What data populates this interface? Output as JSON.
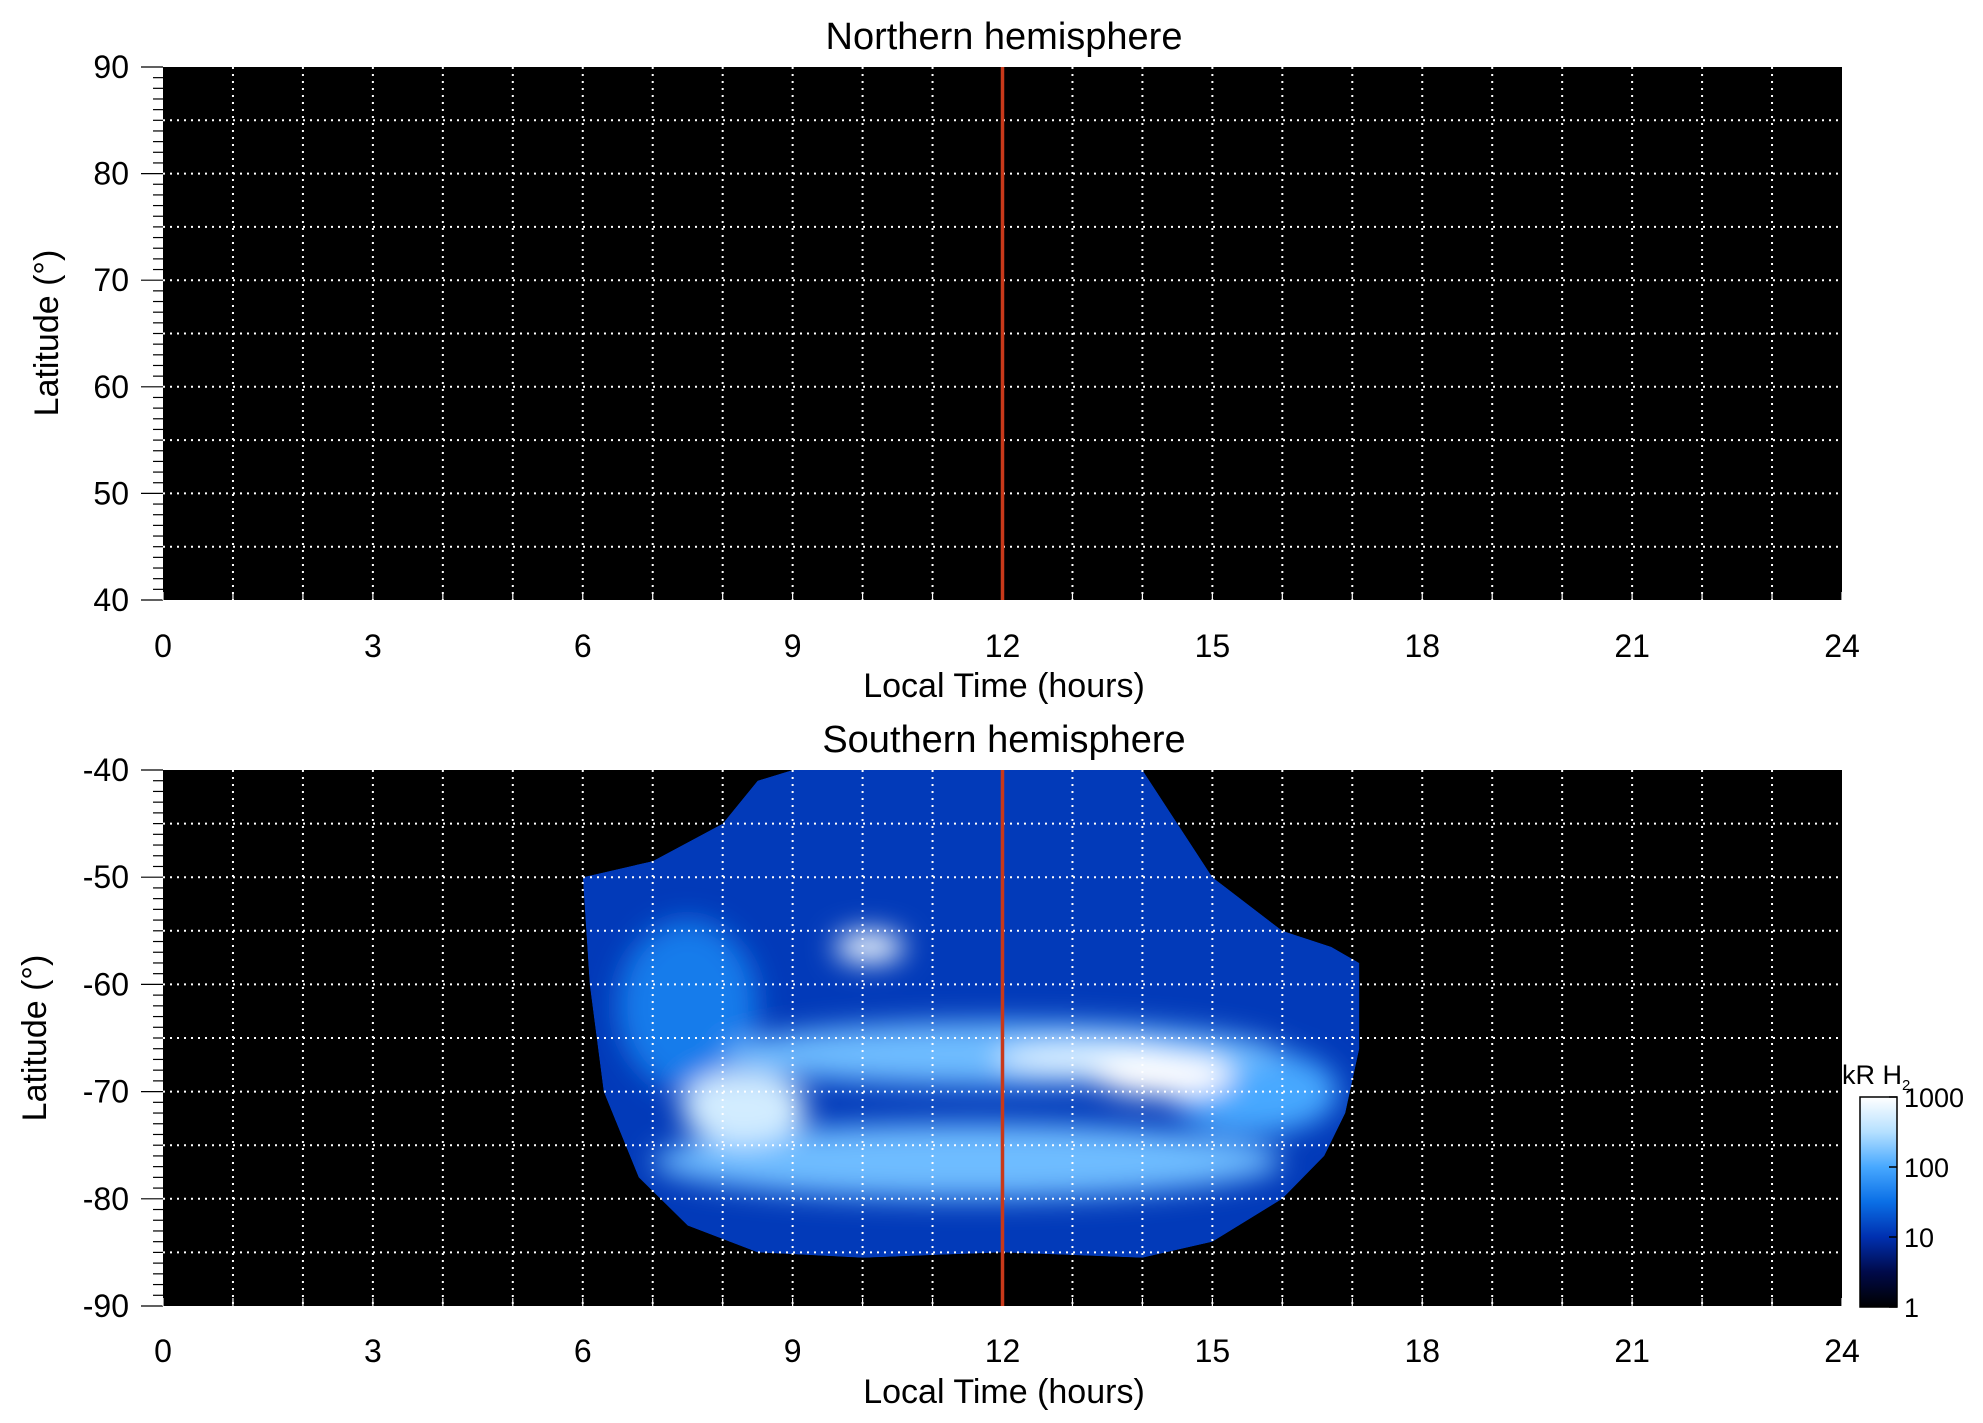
{
  "chart_data": [
    {
      "type": "heatmap",
      "title": "Northern hemisphere",
      "xlabel": "Local Time (hours)",
      "ylabel": "Latitude (°)",
      "xlim": [
        0,
        24
      ],
      "ylim": [
        40,
        90
      ],
      "xticks": [
        0,
        3,
        6,
        9,
        12,
        15,
        18,
        21,
        24
      ],
      "xtick_labels": [
        "0",
        "3",
        "6",
        "9",
        "12",
        "15",
        "18",
        "21",
        "24"
      ],
      "yticks": [
        40,
        50,
        60,
        70,
        80,
        90
      ],
      "ytick_labels": [
        "40",
        "50",
        "60",
        "70",
        "80",
        "90"
      ],
      "grid": true,
      "grid_x_step": 1,
      "grid_y_step": 5,
      "marker_line": {
        "x": 12,
        "color": "#c8391a"
      },
      "emission_features": []
    },
    {
      "type": "heatmap",
      "title": "Southern hemisphere",
      "xlabel": "Local Time (hours)",
      "ylabel": "Latitude (°)",
      "xlim": [
        0,
        24
      ],
      "ylim": [
        -90,
        -40
      ],
      "xticks": [
        0,
        3,
        6,
        9,
        12,
        15,
        18,
        21,
        24
      ],
      "xtick_labels": [
        "0",
        "3",
        "6",
        "9",
        "12",
        "15",
        "18",
        "21",
        "24"
      ],
      "yticks": [
        -90,
        -80,
        -70,
        -60,
        -50,
        -40
      ],
      "ytick_labels": [
        "-90",
        "-80",
        "-70",
        "-60",
        "-50",
        "-40"
      ],
      "grid": true,
      "grid_x_step": 1,
      "grid_y_step": 5,
      "marker_line": {
        "x": 12,
        "color": "#c8391a"
      },
      "coverage_boundary": [
        [
          6.0,
          -50.0
        ],
        [
          7.0,
          -48.5
        ],
        [
          8.0,
          -45.0
        ],
        [
          8.5,
          -41.0
        ],
        [
          9.0,
          -40.0
        ],
        [
          14.0,
          -40.0
        ],
        [
          15.0,
          -50.0
        ],
        [
          16.0,
          -55.0
        ],
        [
          16.7,
          -56.5
        ],
        [
          17.1,
          -58.0
        ],
        [
          17.1,
          -66.0
        ],
        [
          16.9,
          -72.0
        ],
        [
          16.6,
          -76.0
        ],
        [
          16.0,
          -80.0
        ],
        [
          15.0,
          -84.0
        ],
        [
          14.0,
          -85.5
        ],
        [
          12.0,
          -85.0
        ],
        [
          10.0,
          -85.5
        ],
        [
          8.5,
          -85.0
        ],
        [
          7.5,
          -82.5
        ],
        [
          6.8,
          -78.0
        ],
        [
          6.3,
          -70.0
        ],
        [
          6.1,
          -60.0
        ],
        [
          6.0,
          -50.0
        ]
      ],
      "emission_features": [
        {
          "x": 10.1,
          "y": -56.5,
          "rx": 0.5,
          "ry": 1.5,
          "value": 800
        },
        {
          "x": 14.3,
          "y": -68.5,
          "rx": 1.0,
          "ry": 2.0,
          "value": 1000
        },
        {
          "x": 13.2,
          "y": -67.0,
          "rx": 1.3,
          "ry": 1.5,
          "value": 600
        },
        {
          "x": 8.3,
          "y": -71.5,
          "rx": 0.9,
          "ry": 3.5,
          "value": 500
        },
        {
          "x": 12.0,
          "y": -66.5,
          "rx": 4.0,
          "ry": 3.0,
          "value": 150
        },
        {
          "x": 11.5,
          "y": -76.5,
          "rx": 4.5,
          "ry": 3.5,
          "value": 150
        },
        {
          "x": 15.6,
          "y": -70.0,
          "rx": 1.2,
          "ry": 4.0,
          "value": 100
        },
        {
          "x": 7.5,
          "y": -62.0,
          "rx": 1.0,
          "ry": 8.0,
          "value": 40
        }
      ]
    }
  ],
  "colorbar": {
    "label_main": "kR H",
    "label_sub": "2",
    "scale": "log",
    "ticks": [
      "1",
      "10",
      "100",
      "1000"
    ],
    "colors": [
      "#000000",
      "#000a4a",
      "#0030b0",
      "#0a6fe6",
      "#47a8ff",
      "#b5e0ff",
      "#ffffff"
    ]
  }
}
